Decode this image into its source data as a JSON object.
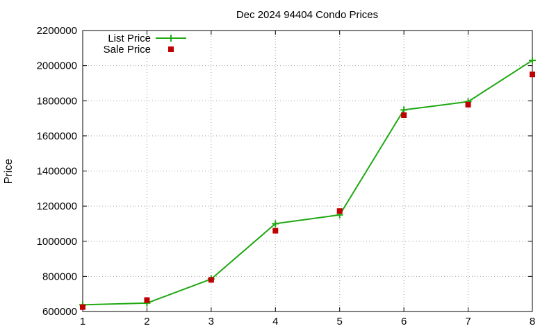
{
  "chart_data": {
    "type": "line",
    "title": "Dec 2024 94404 Condo Prices",
    "xlabel": "",
    "ylabel": "Price",
    "x": [
      1,
      2,
      3,
      4,
      5,
      6,
      7,
      8
    ],
    "xlim": [
      1,
      8
    ],
    "ylim": [
      600000,
      2200000
    ],
    "x_ticks": [
      "1",
      "2",
      "3",
      "4",
      "5",
      "6",
      "7",
      "8"
    ],
    "y_ticks": [
      "600000",
      "800000",
      "1000000",
      "1200000",
      "1400000",
      "1600000",
      "1800000",
      "2000000",
      "2200000"
    ],
    "grid": true,
    "legend_position": "top-left",
    "series": [
      {
        "name": "List Price",
        "style": "line-with-plus-markers",
        "color": "#1fa812",
        "values": [
          638000,
          648000,
          785000,
          1100000,
          1150000,
          1748000,
          1795000,
          2030000
        ]
      },
      {
        "name": "Sale Price",
        "style": "square-markers",
        "color": "#c00000",
        "values": [
          625000,
          665000,
          780000,
          1060000,
          1172000,
          1718000,
          1778000,
          1950000
        ]
      }
    ]
  }
}
